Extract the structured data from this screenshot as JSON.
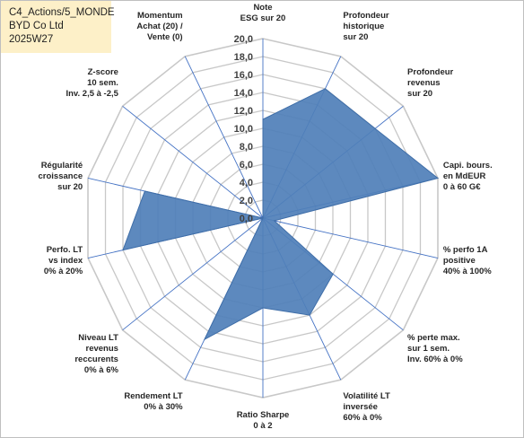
{
  "info_box": {
    "line1": "C4_Actions/5_MONDE",
    "line2": "BYD Co Ltd",
    "line3": "2025W27"
  },
  "colors": {
    "fill": "#4f7fb8",
    "stroke": "#3f6ea8",
    "grid": "#c8c8c8",
    "spokes": "#4472c4",
    "info_bg": "#fdf0c8"
  },
  "chart_data": {
    "type": "radar",
    "rlim": [
      0,
      20
    ],
    "tick_step": 2,
    "tick_labels": [
      "0,0",
      "2,0",
      "4,0",
      "6,0",
      "8,0",
      "10,0",
      "12,0",
      "14,0",
      "16,0",
      "18,0",
      "20,0"
    ],
    "grid": true,
    "categories": [
      [
        "Note",
        "ESG sur 20"
      ],
      [
        "Profondeur",
        "historique",
        "sur 20"
      ],
      [
        "Profondeur",
        "revenus",
        "sur 20"
      ],
      [
        "Capi. bours.",
        "en MdEUR",
        "0 à 60 G€"
      ],
      [
        "% perfo 1A",
        "positive",
        "40% à 100%"
      ],
      [
        "% perte max.",
        "sur 1 sem.",
        "Inv. 60% à 0%"
      ],
      [
        "Volatilité LT",
        "inversée",
        "60% à 0%"
      ],
      [
        "Ratio Sharpe",
        "0 à 2"
      ],
      [
        "Rendement LT",
        "0% à 30%"
      ],
      [
        "Niveau LT",
        "revenus",
        "reccurents",
        "0% à 6%"
      ],
      [
        "Perfo. LT",
        "vs index",
        "0% à 20%"
      ],
      [
        "Régularité",
        "croissance",
        "sur 20"
      ],
      [
        "Z-score",
        "10 sem.",
        "Inv. 2,5 à -2,5"
      ],
      [
        "Momentum",
        "Achat (20) /",
        "Vente (0)"
      ]
    ],
    "series": [
      {
        "values": [
          11.0,
          16.0,
          16.0,
          20.0,
          1.3,
          10.0,
          12.0,
          10.0,
          15.0,
          0.0,
          16.0,
          13.5,
          0.0,
          0.0
        ]
      }
    ]
  }
}
